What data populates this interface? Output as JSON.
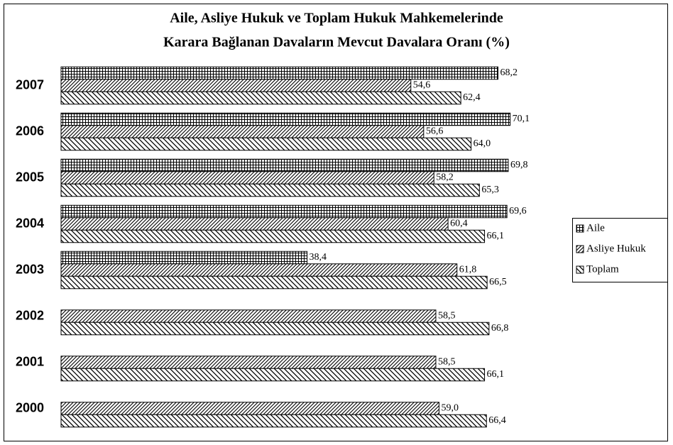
{
  "chart_data": {
    "type": "hbar",
    "title": [
      "Aile, Asliye Hukuk ve Toplam Hukuk Mahkemelerinde",
      "Karara Bağlanan Davaların Mevcut Davalara Oranı (%)"
    ],
    "categories": [
      "2007",
      "2006",
      "2005",
      "2004",
      "2003",
      "2002",
      "2001",
      "2000"
    ],
    "series": [
      {
        "name": "Aile",
        "color": "#000000",
        "pattern": "grid",
        "values": [
          68.2,
          70.1,
          69.8,
          69.6,
          38.4,
          null,
          null,
          null
        ],
        "value_labels": [
          "68,2",
          "70,1",
          "69,8",
          "69,6",
          "38,4",
          null,
          null,
          null
        ]
      },
      {
        "name": "Asliye Hukuk",
        "color": "#000000",
        "pattern": "forward-hatch",
        "values": [
          54.6,
          56.6,
          58.2,
          60.4,
          61.8,
          58.5,
          58.5,
          59.0
        ],
        "value_labels": [
          "54,6",
          "56,6",
          "58,2",
          "60,4",
          "61,8",
          "58,5",
          "58,5",
          "59,0"
        ]
      },
      {
        "name": "Toplam",
        "color": "#000000",
        "pattern": "back-hatch",
        "values": [
          62.4,
          64.0,
          65.3,
          66.1,
          66.5,
          66.8,
          66.1,
          66.4
        ],
        "value_labels": [
          "62,4",
          "64,0",
          "65,3",
          "66,1",
          "66,5",
          "66,8",
          "66,1",
          "66,4"
        ]
      }
    ],
    "xlim": [
      0,
      80
    ],
    "legend": "right"
  }
}
